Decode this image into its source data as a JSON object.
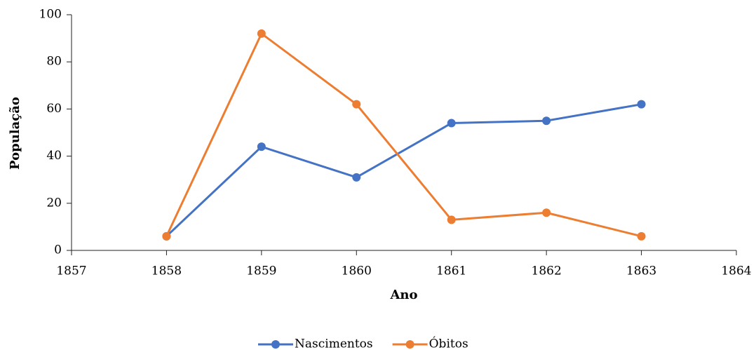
{
  "chart_data": {
    "type": "line",
    "x": [
      1858,
      1859,
      1860,
      1861,
      1862,
      1863
    ],
    "series": [
      {
        "name": "Nascimentos",
        "color": "#4472c4",
        "values": [
          6,
          44,
          31,
          54,
          55,
          62
        ]
      },
      {
        "name": "Óbitos",
        "color": "#ed7d31",
        "values": [
          6,
          92,
          62,
          13,
          16,
          6
        ]
      }
    ],
    "xlabel": "Ano",
    "ylabel": "População",
    "xlim": [
      1857,
      1864
    ],
    "xticks": [
      1857,
      1858,
      1859,
      1860,
      1861,
      1862,
      1863,
      1864
    ],
    "ylim": [
      0,
      100
    ],
    "yticks": [
      0,
      20,
      40,
      60,
      80,
      100
    ],
    "legend": "bottom"
  }
}
